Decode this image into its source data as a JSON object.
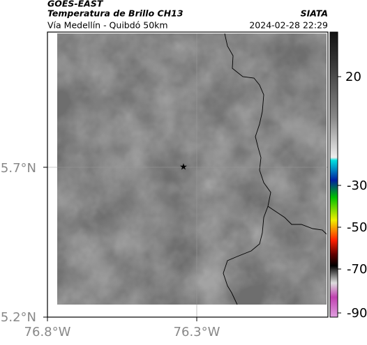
{
  "header": {
    "title": "GOES-EAST",
    "subtitle": "Temperatura de Brillo CH13",
    "region": "Vía Medellín - Quibdó 50km",
    "source": "SIATA",
    "timestamp": "2024-02-28 22:29"
  },
  "map": {
    "lat_ticks": [
      "5.7°N",
      "5.2°N"
    ],
    "lon_ticks": [
      "76.8°W",
      "76.3°W"
    ]
  },
  "colorbar": {
    "labels": [
      "20",
      "-30",
      "-50",
      "-70",
      "-90"
    ]
  }
}
